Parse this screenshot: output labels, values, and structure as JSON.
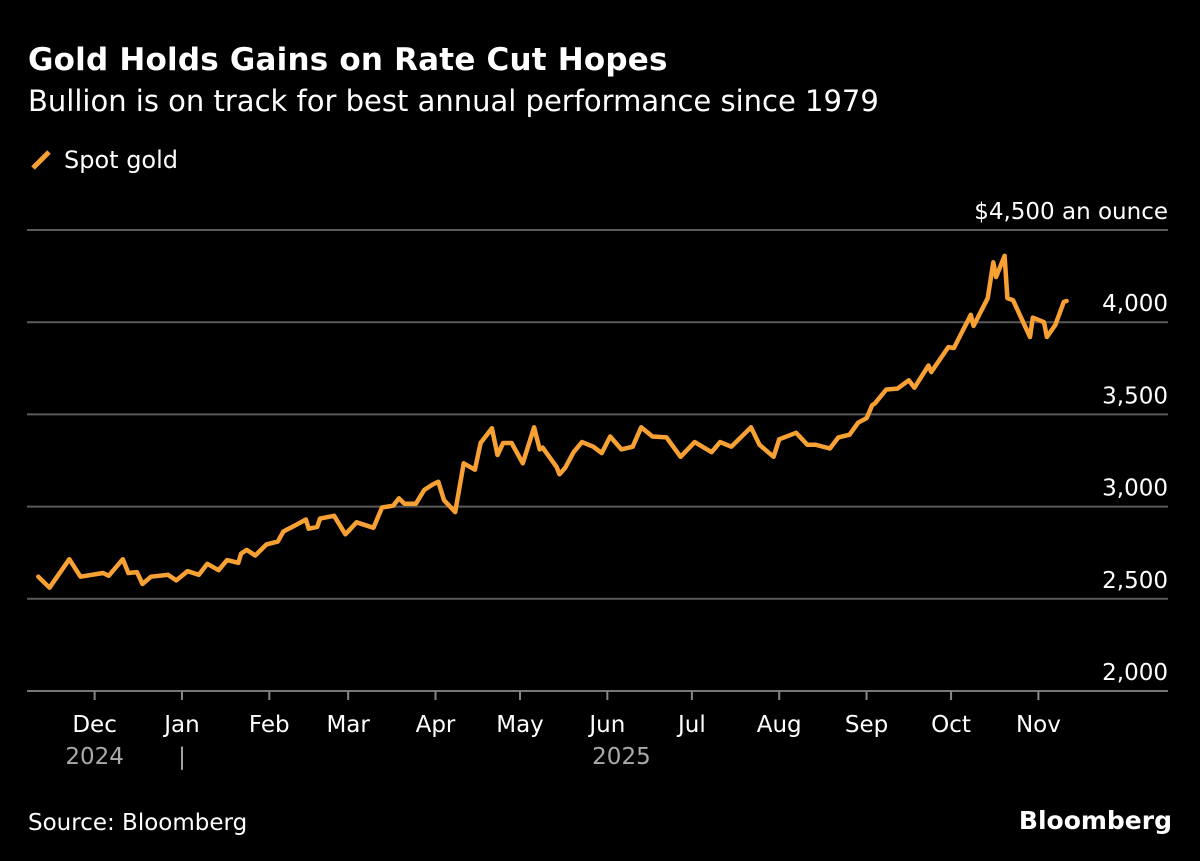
{
  "chart_data": {
    "type": "line",
    "title": "Gold Holds Gains on Rate Cut Hopes",
    "subtitle": "Bullion is on track for best annual performance since 1979",
    "source": "Source: Bloomberg",
    "logo": "Bloomberg",
    "ylabel": "$4,500 an ounce",
    "ylim": [
      2000,
      4500
    ],
    "y_ticks": [
      {
        "value": 4500,
        "label": "$4,500 an ounce"
      },
      {
        "value": 4000,
        "label": "4,000"
      },
      {
        "value": 3500,
        "label": "3,500"
      },
      {
        "value": 3000,
        "label": "3,000"
      },
      {
        "value": 2500,
        "label": "2,500"
      },
      {
        "value": 2000,
        "label": "2,000"
      }
    ],
    "xlim": [
      "2024-11-07",
      "2025-12-17"
    ],
    "x_ticks": [
      {
        "date": "2024-12-01",
        "label": "Dec"
      },
      {
        "date": "2025-01-01",
        "label": "Jan"
      },
      {
        "date": "2025-02-01",
        "label": "Feb"
      },
      {
        "date": "2025-03-01",
        "label": "Mar"
      },
      {
        "date": "2025-04-01",
        "label": "Apr"
      },
      {
        "date": "2025-05-01",
        "label": "May"
      },
      {
        "date": "2025-06-01",
        "label": "Jun"
      },
      {
        "date": "2025-07-01",
        "label": "Jul"
      },
      {
        "date": "2025-08-01",
        "label": "Aug"
      },
      {
        "date": "2025-09-01",
        "label": "Sep"
      },
      {
        "date": "2025-10-01",
        "label": "Oct"
      },
      {
        "date": "2025-11-01",
        "label": "Nov"
      }
    ],
    "year_labels": [
      {
        "label": "2024",
        "date": "2024-12-01"
      },
      {
        "label": "|",
        "date": "2025-01-01"
      },
      {
        "label": "2025",
        "date": "2025-06-06"
      }
    ],
    "grid": true,
    "legend_position": "top-left",
    "series": [
      {
        "name": "Spot gold",
        "color": "#f7a033",
        "points": [
          [
            "2024-11-11",
            2620
          ],
          [
            "2024-11-15",
            2560
          ],
          [
            "2024-11-22",
            2715
          ],
          [
            "2024-11-26",
            2620
          ],
          [
            "2024-12-04",
            2640
          ],
          [
            "2024-12-06",
            2625
          ],
          [
            "2024-12-11",
            2715
          ],
          [
            "2024-12-13",
            2640
          ],
          [
            "2024-12-16",
            2645
          ],
          [
            "2024-12-18",
            2580
          ],
          [
            "2024-12-21",
            2620
          ],
          [
            "2024-12-27",
            2630
          ],
          [
            "2024-12-30",
            2600
          ],
          [
            "2025-01-03",
            2650
          ],
          [
            "2025-01-07",
            2630
          ],
          [
            "2025-01-10",
            2690
          ],
          [
            "2025-01-14",
            2655
          ],
          [
            "2025-01-17",
            2710
          ],
          [
            "2025-01-21",
            2695
          ],
          [
            "2025-01-22",
            2745
          ],
          [
            "2025-01-24",
            2765
          ],
          [
            "2025-01-27",
            2735
          ],
          [
            "2025-01-31",
            2795
          ],
          [
            "2025-02-04",
            2810
          ],
          [
            "2025-02-06",
            2865
          ],
          [
            "2025-02-11",
            2905
          ],
          [
            "2025-02-14",
            2930
          ],
          [
            "2025-02-15",
            2880
          ],
          [
            "2025-02-18",
            2890
          ],
          [
            "2025-02-19",
            2935
          ],
          [
            "2025-02-24",
            2950
          ],
          [
            "2025-02-28",
            2850
          ],
          [
            "2025-03-04",
            2915
          ],
          [
            "2025-03-10",
            2885
          ],
          [
            "2025-03-13",
            2995
          ],
          [
            "2025-03-17",
            3005
          ],
          [
            "2025-03-19",
            3045
          ],
          [
            "2025-03-21",
            3015
          ],
          [
            "2025-03-25",
            3015
          ],
          [
            "2025-03-28",
            3090
          ],
          [
            "2025-03-31",
            3120
          ],
          [
            "2025-04-02",
            3135
          ],
          [
            "2025-04-04",
            3035
          ],
          [
            "2025-04-08",
            2970
          ],
          [
            "2025-04-11",
            3235
          ],
          [
            "2025-04-15",
            3200
          ],
          [
            "2025-04-17",
            3345
          ],
          [
            "2025-04-21",
            3425
          ],
          [
            "2025-04-23",
            3280
          ],
          [
            "2025-04-25",
            3345
          ],
          [
            "2025-04-28",
            3345
          ],
          [
            "2025-05-02",
            3235
          ],
          [
            "2025-05-06",
            3430
          ],
          [
            "2025-05-08",
            3310
          ],
          [
            "2025-05-09",
            3320
          ],
          [
            "2025-05-14",
            3215
          ],
          [
            "2025-05-15",
            3175
          ],
          [
            "2025-05-17",
            3210
          ],
          [
            "2025-05-20",
            3295
          ],
          [
            "2025-05-23",
            3350
          ],
          [
            "2025-05-27",
            3325
          ],
          [
            "2025-05-30",
            3290
          ],
          [
            "2025-06-02",
            3380
          ],
          [
            "2025-06-06",
            3310
          ],
          [
            "2025-06-10",
            3325
          ],
          [
            "2025-06-13",
            3430
          ],
          [
            "2025-06-17",
            3380
          ],
          [
            "2025-06-22",
            3375
          ],
          [
            "2025-06-27",
            3270
          ],
          [
            "2025-07-02",
            3350
          ],
          [
            "2025-07-08",
            3295
          ],
          [
            "2025-07-11",
            3350
          ],
          [
            "2025-07-15",
            3325
          ],
          [
            "2025-07-22",
            3430
          ],
          [
            "2025-07-25",
            3335
          ],
          [
            "2025-07-30",
            3270
          ],
          [
            "2025-08-01",
            3365
          ],
          [
            "2025-08-07",
            3400
          ],
          [
            "2025-08-11",
            3335
          ],
          [
            "2025-08-14",
            3335
          ],
          [
            "2025-08-19",
            3315
          ],
          [
            "2025-08-22",
            3375
          ],
          [
            "2025-08-26",
            3390
          ],
          [
            "2025-08-29",
            3455
          ],
          [
            "2025-09-01",
            3480
          ],
          [
            "2025-09-03",
            3550
          ],
          [
            "2025-09-04",
            3560
          ],
          [
            "2025-09-08",
            3635
          ],
          [
            "2025-09-12",
            3640
          ],
          [
            "2025-09-16",
            3685
          ],
          [
            "2025-09-18",
            3645
          ],
          [
            "2025-09-23",
            3765
          ],
          [
            "2025-09-24",
            3730
          ],
          [
            "2025-09-30",
            3865
          ],
          [
            "2025-10-02",
            3860
          ],
          [
            "2025-10-08",
            4040
          ],
          [
            "2025-10-09",
            3980
          ],
          [
            "2025-10-14",
            4130
          ],
          [
            "2025-10-16",
            4325
          ],
          [
            "2025-10-17",
            4245
          ],
          [
            "2025-10-20",
            4360
          ],
          [
            "2025-10-21",
            4130
          ],
          [
            "2025-10-23",
            4120
          ],
          [
            "2025-10-29",
            3920
          ],
          [
            "2025-10-30",
            4025
          ],
          [
            "2025-11-03",
            4000
          ],
          [
            "2025-11-04",
            3920
          ],
          [
            "2025-11-07",
            3985
          ],
          [
            "2025-11-10",
            4110
          ],
          [
            "2025-11-11",
            4115
          ]
        ]
      }
    ]
  }
}
